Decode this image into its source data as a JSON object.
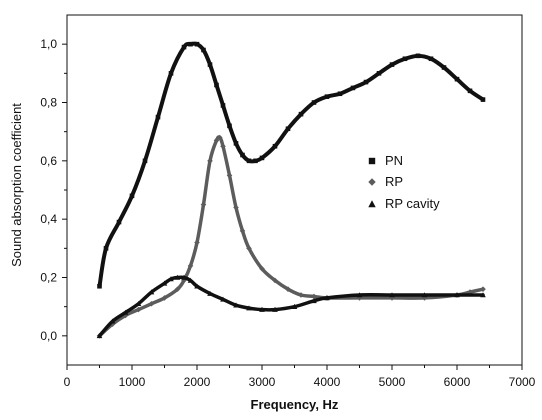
{
  "chart_data": {
    "type": "line",
    "title": "",
    "xlabel": "Frequency, Hz",
    "ylabel": "Sound absorption coefficient",
    "xlim": [
      0,
      7000
    ],
    "ylim": [
      -0.1,
      1.1
    ],
    "xticks": [
      0,
      1000,
      2000,
      3000,
      4000,
      5000,
      6000,
      7000
    ],
    "xtick_labels": [
      "0",
      "1000",
      "2000",
      "3000",
      "4000",
      "5000",
      "6000",
      "7000"
    ],
    "yticks": [
      0.0,
      0.2,
      0.4,
      0.6,
      0.8,
      1.0
    ],
    "ytick_labels": [
      "0,0",
      "0,2",
      "0,4",
      "0,6",
      "0,8",
      "1,0"
    ],
    "grid": false,
    "legend_position": "center-right",
    "series": [
      {
        "name": "PN",
        "marker": "square",
        "color": "#111111",
        "x": [
          500,
          600,
          800,
          1000,
          1200,
          1400,
          1600,
          1800,
          1900,
          2000,
          2100,
          2200,
          2300,
          2400,
          2500,
          2600,
          2700,
          2800,
          2900,
          3000,
          3200,
          3400,
          3600,
          3800,
          4000,
          4200,
          4400,
          4600,
          4800,
          5000,
          5200,
          5400,
          5600,
          5800,
          6000,
          6200,
          6400
        ],
        "y": [
          0.17,
          0.3,
          0.39,
          0.48,
          0.6,
          0.75,
          0.9,
          0.99,
          1.0,
          1.0,
          0.98,
          0.93,
          0.86,
          0.79,
          0.72,
          0.66,
          0.62,
          0.6,
          0.6,
          0.61,
          0.65,
          0.71,
          0.76,
          0.8,
          0.82,
          0.83,
          0.85,
          0.87,
          0.9,
          0.93,
          0.95,
          0.96,
          0.95,
          0.92,
          0.88,
          0.84,
          0.81
        ]
      },
      {
        "name": "RP",
        "marker": "diamond",
        "color": "#5c5c5c",
        "x": [
          500,
          700,
          900,
          1100,
          1300,
          1500,
          1700,
          1800,
          1900,
          2000,
          2100,
          2200,
          2300,
          2350,
          2400,
          2500,
          2600,
          2700,
          2800,
          3000,
          3200,
          3400,
          3600,
          3800,
          4000,
          4500,
          5000,
          5500,
          6000,
          6200,
          6400
        ],
        "y": [
          0.0,
          0.04,
          0.07,
          0.09,
          0.11,
          0.13,
          0.16,
          0.19,
          0.24,
          0.32,
          0.45,
          0.6,
          0.67,
          0.68,
          0.65,
          0.55,
          0.44,
          0.36,
          0.3,
          0.23,
          0.19,
          0.16,
          0.14,
          0.135,
          0.13,
          0.13,
          0.13,
          0.13,
          0.14,
          0.15,
          0.16
        ]
      },
      {
        "name": "RP cavity",
        "marker": "triangle",
        "color": "#111111",
        "x": [
          500,
          700,
          900,
          1100,
          1300,
          1500,
          1600,
          1700,
          1800,
          1900,
          2000,
          2200,
          2400,
          2600,
          2800,
          3000,
          3200,
          3500,
          3800,
          4000,
          4500,
          5000,
          5500,
          6000,
          6400
        ],
        "y": [
          0.0,
          0.05,
          0.08,
          0.11,
          0.15,
          0.18,
          0.195,
          0.2,
          0.2,
          0.19,
          0.17,
          0.145,
          0.125,
          0.105,
          0.095,
          0.09,
          0.09,
          0.1,
          0.12,
          0.13,
          0.14,
          0.14,
          0.14,
          0.14,
          0.14
        ]
      }
    ]
  }
}
